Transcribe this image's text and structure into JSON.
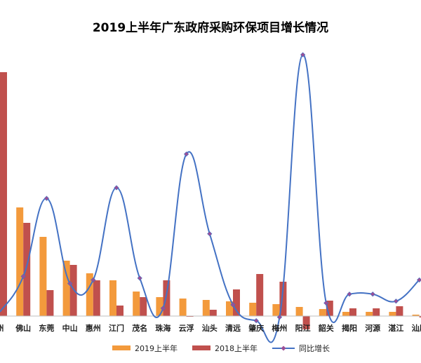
{
  "chart_data": {
    "type": "bar",
    "title": "2019上半年广东政府采购环保项目增长情况",
    "categories": [
      "州",
      "佛山",
      "东莞",
      "中山",
      "惠州",
      "江门",
      "茂名",
      "珠海",
      "云浮",
      "汕头",
      "清远",
      "肇庆",
      "梅州",
      "阳江",
      "韶关",
      "揭阳",
      "河源",
      "湛江",
      "汕尾"
    ],
    "series": [
      {
        "name": "2019上半年",
        "kind": "bar",
        "color": "#F39A3C",
        "values": [
          0,
          155,
          113,
          79,
          61,
          51,
          35,
          27,
          25,
          23,
          21,
          19,
          17,
          13,
          10,
          6,
          6,
          6,
          2
        ]
      },
      {
        "name": "2018上半年",
        "kind": "bar",
        "color": "#C0504D",
        "values": [
          348,
          133,
          37,
          73,
          51,
          15,
          27,
          51,
          -1,
          9,
          38,
          60,
          49,
          -19,
          22,
          11,
          11,
          14,
          -2
        ]
      },
      {
        "name": "同比增长",
        "kind": "line",
        "color": "#4472C4",
        "marker_color": "#9B4F96",
        "values": [
          0.17,
          0.37,
          0.81,
          0.33,
          0.35,
          0.87,
          0.36,
          0.19,
          1.06,
          0.61,
          0.21,
          0.12,
          0.14,
          1.62,
          0.22,
          0.27,
          0.27,
          0.23,
          0.35
        ]
      }
    ],
    "grid": false,
    "legend": "bottom",
    "xlabel": "",
    "ylabel": ""
  }
}
